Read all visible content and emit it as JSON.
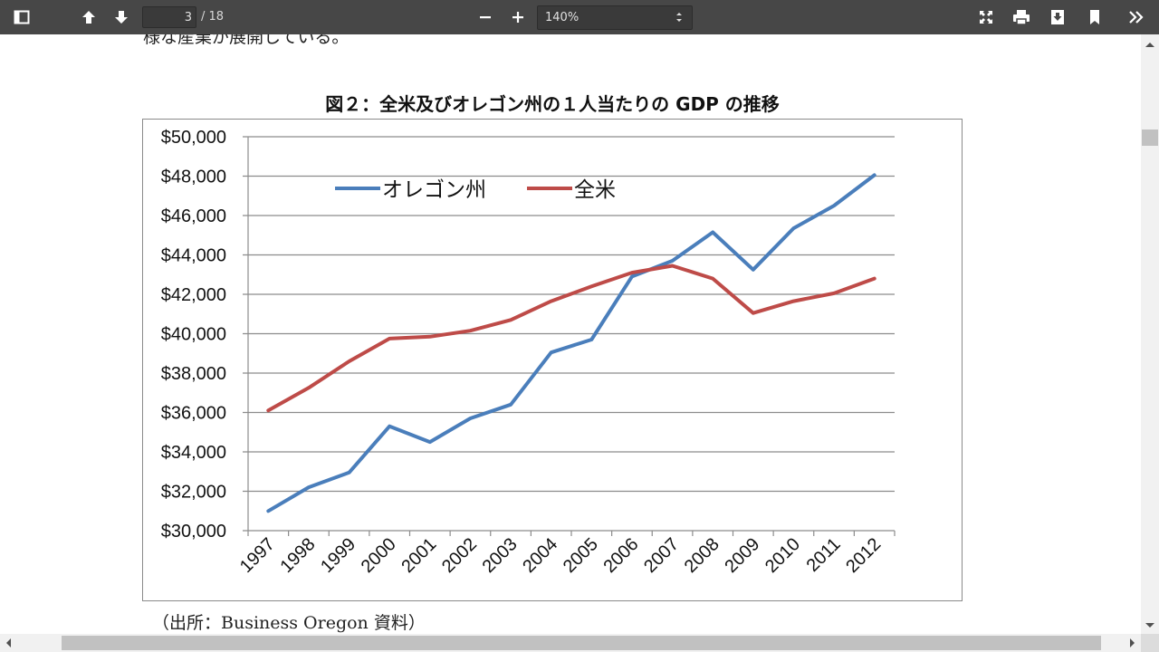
{
  "toolbar": {
    "page_current": "3",
    "page_total": "/ 18",
    "zoom_value": "140%",
    "icons": [
      "sidebar-toggle-icon",
      "previous-page-icon",
      "next-page-icon",
      "zoom-out-icon",
      "zoom-in-icon",
      "presentation-mode-icon",
      "print-icon",
      "download-icon",
      "bookmark-icon",
      "tools-icon"
    ]
  },
  "document": {
    "top_text": "様な産業が展開している。",
    "figure_title": "図２：全米及びオレゴン州の１人当たりの GDP の推移",
    "source": "（出所：Business Oregon 資料）"
  },
  "chart_data": {
    "type": "line",
    "title": "図２：全米及びオレゴン州の１人当たりの GDP の推移",
    "categories": [
      "1997",
      "1998",
      "1999",
      "2000",
      "2001",
      "2002",
      "2003",
      "2004",
      "2005",
      "2006",
      "2007",
      "2008",
      "2009",
      "2010",
      "2011",
      "2012"
    ],
    "series": [
      {
        "name": "オレゴン州",
        "color": "#4a7ebb",
        "values": [
          31000,
          32200,
          32950,
          35300,
          34500,
          35700,
          36400,
          39050,
          39700,
          42900,
          43700,
          45150,
          43250,
          45350,
          46500,
          48050
        ]
      },
      {
        "name": "全米",
        "color": "#be4b48",
        "values": [
          36100,
          37250,
          38600,
          39750,
          39850,
          40150,
          40700,
          41650,
          42400,
          43100,
          43450,
          42800,
          41050,
          41650,
          42050,
          42800
        ]
      }
    ],
    "ylim": [
      30000,
      50000
    ],
    "ytick_step": 2000,
    "ytick_labels": [
      "$30,000",
      "$32,000",
      "$34,000",
      "$36,000",
      "$38,000",
      "$40,000",
      "$42,000",
      "$44,000",
      "$46,000",
      "$48,000",
      "$50,000"
    ],
    "grid": true,
    "legend_position": "top-left"
  }
}
